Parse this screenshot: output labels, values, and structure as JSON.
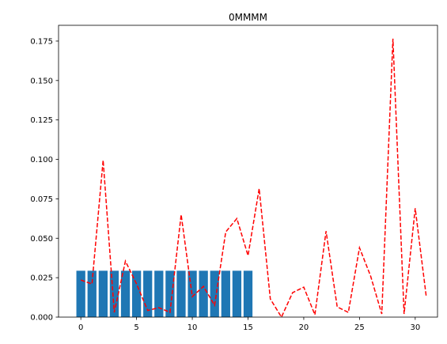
{
  "chart_data": {
    "type": "bar",
    "title": "0MMMM",
    "xlabel": "",
    "ylabel": "",
    "xlim": [
      -2.0,
      32.0
    ],
    "ylim": [
      0,
      0.185
    ],
    "grid": false,
    "legend": "none",
    "xticks": [
      0,
      5,
      10,
      15,
      20,
      25,
      30
    ],
    "xtick_labels": [
      "0",
      "5",
      "10",
      "15",
      "20",
      "25",
      "30"
    ],
    "yticks": [
      0.0,
      0.025,
      0.05,
      0.075,
      0.1,
      0.125,
      0.15,
      0.175
    ],
    "ytick_labels": [
      "0.000",
      "0.025",
      "0.050",
      "0.075",
      "0.100",
      "0.125",
      "0.150",
      "0.175"
    ],
    "bars": {
      "color": "#1f77b4",
      "x": [
        0,
        1,
        2,
        3,
        4,
        5,
        6,
        7,
        8,
        9,
        10,
        11,
        12,
        13,
        14,
        15
      ],
      "values": [
        0.0294,
        0.0294,
        0.0294,
        0.0294,
        0.0294,
        0.0294,
        0.0294,
        0.0294,
        0.0294,
        0.0294,
        0.0294,
        0.0294,
        0.0294,
        0.0294,
        0.0294,
        0.0294
      ]
    },
    "line": {
      "color": "#ff0000",
      "style": "dashed",
      "x": [
        0,
        1,
        2,
        3,
        4,
        5,
        6,
        7,
        8,
        9,
        10,
        11,
        12,
        13,
        14,
        15,
        16,
        17,
        18,
        19,
        20,
        21,
        22,
        23,
        24,
        25,
        26,
        27,
        28,
        29,
        30,
        31
      ],
      "values": [
        0.0235,
        0.021,
        0.0995,
        0.003,
        0.0355,
        0.021,
        0.0042,
        0.006,
        0.003,
        0.065,
        0.013,
        0.0195,
        0.0075,
        0.054,
        0.0625,
        0.039,
        0.0815,
        0.0115,
        0.0,
        0.0155,
        0.019,
        0.0015,
        0.0545,
        0.0065,
        0.003,
        0.044,
        0.026,
        0.002,
        0.1765,
        0.002,
        0.069,
        0.0125
      ]
    }
  }
}
